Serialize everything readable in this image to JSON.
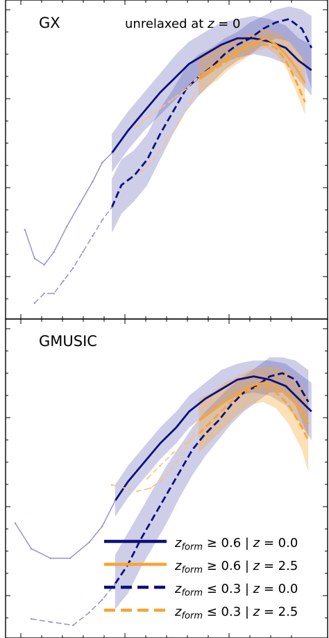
{
  "chart_data": [
    {
      "type": "line",
      "panel_label": "GX",
      "annotation": {
        "text": "unrelaxed at ",
        "math_var": "z",
        "math_rest": " = 0"
      },
      "xlim": [
        0,
        100
      ],
      "ylim": [
        0,
        100
      ],
      "grid": false,
      "series": [
        {
          "key": "hi_z0",
          "color": "#0d0f7a",
          "style": "solid",
          "opacity": 1,
          "x": [
            33,
            38,
            43,
            48,
            53,
            57,
            62,
            67,
            72,
            77,
            82,
            87,
            91,
            95
          ],
          "y": [
            52,
            59,
            65,
            71,
            76,
            80,
            83,
            86,
            88,
            88,
            87,
            85,
            81,
            78
          ]
        },
        {
          "key": "hi_z0_ext",
          "color": "#9a9ad0",
          "style": "solid",
          "opacity": 1,
          "x": [
            6,
            9,
            12,
            15,
            19,
            23,
            27,
            30,
            33
          ],
          "y": [
            28,
            19,
            17,
            21,
            29,
            36,
            43,
            49,
            52
          ]
        },
        {
          "key": "lo_z0",
          "color": "#0d0f7a",
          "style": "dashed",
          "opacity": 1,
          "x": [
            33,
            36,
            40,
            44,
            48,
            52,
            56,
            60,
            64,
            68,
            72,
            76,
            80,
            84,
            88,
            92,
            95
          ],
          "y": [
            35,
            42,
            45,
            50,
            58,
            65,
            72,
            76,
            79,
            83,
            86,
            88,
            91,
            93,
            94,
            91,
            85
          ]
        },
        {
          "key": "lo_z0_ext",
          "color": "#9a9ad0",
          "style": "dashed",
          "opacity": 1,
          "x": [
            9,
            12,
            15,
            18,
            21,
            24,
            27,
            30,
            33
          ],
          "y": [
            5,
            8,
            8,
            12,
            16,
            21,
            26,
            31,
            35
          ]
        },
        {
          "key": "hi_z25",
          "color": "#f7a534",
          "style": "solid",
          "opacity": 1,
          "x": [
            60,
            63,
            66,
            69,
            72,
            75,
            78,
            81,
            84,
            87,
            90,
            93
          ],
          "y": [
            76,
            78,
            80,
            82,
            84,
            86,
            87,
            88,
            86,
            83,
            79,
            74
          ]
        },
        {
          "key": "lo_z25",
          "color": "#f7a534",
          "style": "dashed",
          "opacity": 1,
          "x": [
            60,
            63,
            66,
            69,
            72,
            75,
            78,
            81,
            84,
            87,
            90,
            93
          ],
          "y": [
            75,
            77,
            79,
            81,
            83,
            85,
            86,
            86,
            85,
            81,
            75,
            68
          ]
        },
        {
          "key": "hi_z25_ext",
          "color": "#f7c486",
          "style": "dashed",
          "opacity": 1,
          "x": [
            40,
            44,
            48,
            52,
            56,
            60
          ],
          "y": [
            60,
            63,
            66,
            69,
            72,
            76
          ]
        },
        {
          "key": "lo_z25_ext",
          "color": "#f7c486",
          "style": "dashed",
          "opacity": 1,
          "x": [
            42,
            46,
            50,
            54,
            58,
            60
          ],
          "y": [
            46,
            50,
            56,
            62,
            69,
            75
          ]
        }
      ],
      "bands": [
        {
          "color": "#3a3aa8",
          "opacity": 0.25,
          "x": [
            33,
            38,
            43,
            48,
            53,
            57,
            62,
            67,
            72,
            77,
            82,
            87,
            91,
            95
          ],
          "lower": [
            46,
            53,
            59,
            64,
            69,
            73,
            76,
            80,
            82,
            83,
            82,
            80,
            75,
            70
          ],
          "upper": [
            58,
            65,
            71,
            77,
            83,
            87,
            90,
            93,
            94,
            95,
            94,
            92,
            88,
            86
          ]
        },
        {
          "color": "#3a3aa8",
          "opacity": 0.25,
          "x": [
            33,
            36,
            40,
            44,
            48,
            52,
            56,
            60,
            64,
            68,
            72,
            76,
            80,
            84,
            88,
            92,
            95
          ],
          "lower": [
            27,
            33,
            37,
            42,
            50,
            58,
            65,
            70,
            74,
            78,
            81,
            83,
            86,
            88,
            87,
            82,
            72
          ],
          "upper": [
            44,
            50,
            53,
            58,
            66,
            72,
            79,
            83,
            85,
            88,
            90,
            93,
            95,
            97,
            98,
            97,
            95
          ]
        },
        {
          "color": "#f7a534",
          "opacity": 0.35,
          "x": [
            60,
            63,
            66,
            69,
            72,
            75,
            78,
            81,
            84,
            87,
            90,
            93
          ],
          "lower": [
            70,
            73,
            75,
            78,
            80,
            82,
            84,
            85,
            83,
            79,
            72,
            64
          ],
          "upper": [
            82,
            84,
            86,
            87,
            88,
            89,
            90,
            91,
            90,
            88,
            85,
            81
          ]
        }
      ]
    },
    {
      "type": "line",
      "panel_label": "GMUSIC",
      "xlim": [
        0,
        100
      ],
      "ylim": [
        0,
        100
      ],
      "grid": false,
      "series": [
        {
          "key": "hi_z0",
          "color": "#0d0f7a",
          "style": "solid",
          "opacity": 1,
          "x": [
            34,
            38,
            43,
            48,
            53,
            57,
            62,
            67,
            72,
            77,
            82,
            87,
            91,
            95
          ],
          "y": [
            43,
            49,
            55,
            61,
            66,
            71,
            75,
            78,
            81,
            82,
            81,
            79,
            75,
            71
          ]
        },
        {
          "key": "hi_z0_ext",
          "color": "#9a9ad0",
          "style": "solid",
          "opacity": 1,
          "x": [
            3,
            8,
            14,
            20,
            26,
            30,
            34
          ],
          "y": [
            36,
            28,
            25,
            25,
            30,
            35,
            43
          ]
        },
        {
          "key": "lo_z0",
          "color": "#0d0f7a",
          "style": "dashed",
          "opacity": 1,
          "x": [
            34,
            38,
            42,
            46,
            50,
            54,
            58,
            62,
            66,
            70,
            74,
            78,
            82,
            86,
            90,
            94
          ],
          "y": [
            17,
            23,
            31,
            38,
            45,
            52,
            59,
            64,
            68,
            73,
            77,
            79,
            82,
            83,
            81,
            74
          ]
        },
        {
          "key": "lo_z0_ext",
          "color": "#9a9ad0",
          "style": "dashed",
          "opacity": 1,
          "x": [
            8,
            14,
            21,
            26,
            30,
            34
          ],
          "y": [
            6,
            5,
            4,
            8,
            12,
            17
          ]
        },
        {
          "key": "hi_z25",
          "color": "#f7a534",
          "style": "solid",
          "opacity": 1,
          "x": [
            60,
            64,
            68,
            72,
            76,
            80,
            84,
            88,
            92,
            94
          ],
          "y": [
            68,
            71,
            74,
            77,
            79,
            80,
            79,
            76,
            71,
            67
          ]
        },
        {
          "key": "lo_z25",
          "color": "#f7a534",
          "style": "dashed",
          "opacity": 1,
          "x": [
            60,
            64,
            68,
            72,
            76,
            80,
            84,
            88,
            92,
            94
          ],
          "y": [
            64,
            68,
            72,
            76,
            78,
            79,
            77,
            73,
            66,
            62
          ]
        },
        {
          "key": "hi_z25_ext",
          "color": "#f7c486",
          "style": "dashed",
          "opacity": 1,
          "x": [
            33,
            37,
            41,
            45,
            49,
            53,
            57,
            60
          ],
          "y": [
            48,
            47,
            46,
            47,
            50,
            55,
            61,
            68
          ]
        },
        {
          "key": "lo_z25_ext",
          "color": "#f7c486",
          "style": "dashed",
          "opacity": 1,
          "x": [
            44,
            48,
            52,
            56,
            60
          ],
          "y": [
            50,
            54,
            58,
            61,
            64
          ]
        }
      ],
      "bands": [
        {
          "color": "#3a3aa8",
          "opacity": 0.25,
          "x": [
            34,
            38,
            43,
            48,
            53,
            57,
            62,
            67,
            72,
            77,
            82,
            87,
            91,
            95
          ],
          "lower": [
            38,
            44,
            50,
            56,
            61,
            66,
            70,
            73,
            76,
            77,
            76,
            73,
            68,
            62
          ],
          "upper": [
            48,
            54,
            60,
            66,
            71,
            76,
            80,
            84,
            86,
            87,
            87,
            86,
            83,
            80
          ]
        },
        {
          "color": "#3a3aa8",
          "opacity": 0.25,
          "x": [
            34,
            38,
            42,
            46,
            50,
            54,
            58,
            62,
            66,
            70,
            74,
            78,
            82,
            86,
            90,
            94
          ],
          "lower": [
            9,
            14,
            22,
            29,
            36,
            44,
            51,
            57,
            62,
            67,
            71,
            74,
            77,
            77,
            73,
            63
          ],
          "upper": [
            26,
            33,
            40,
            47,
            54,
            60,
            66,
            71,
            75,
            79,
            82,
            85,
            88,
            88,
            87,
            84
          ]
        },
        {
          "color": "#f7a534",
          "opacity": 0.35,
          "x": [
            60,
            64,
            68,
            72,
            76,
            80,
            84,
            88,
            92,
            94
          ],
          "lower": [
            58,
            62,
            66,
            70,
            73,
            74,
            72,
            67,
            59,
            52
          ],
          "upper": [
            75,
            77,
            80,
            82,
            84,
            85,
            85,
            83,
            79,
            75
          ]
        }
      ]
    }
  ],
  "legend": {
    "placement": "lower-right",
    "entries": [
      {
        "sub": "form",
        "rel": "≥",
        "zform": "0.6",
        "z": "0.0",
        "color": "#0d0f7a",
        "style": "solid"
      },
      {
        "sub": "form",
        "rel": "≥",
        "zform": "0.6",
        "z": "2.5",
        "color": "#f7a534",
        "style": "solid"
      },
      {
        "sub": "form",
        "rel": "≤",
        "zform": "0.3",
        "z": "0.0",
        "color": "#0d0f7a",
        "style": "dashed"
      },
      {
        "sub": "form",
        "rel": "≤",
        "zform": "0.3",
        "z": "2.5",
        "color": "#f7a534",
        "style": "dashed"
      }
    ]
  }
}
